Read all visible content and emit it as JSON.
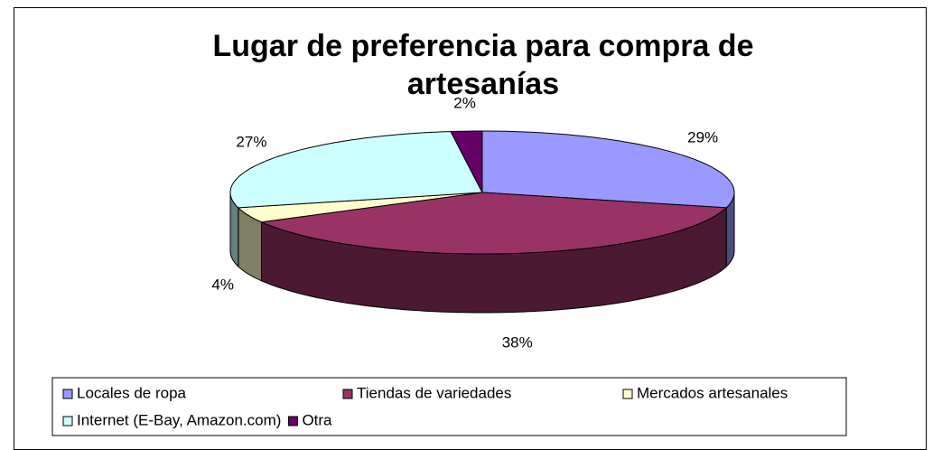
{
  "chart_data": {
    "type": "pie",
    "title": "Lugar de preferencia para compra de artesanías",
    "categories": [
      "Locales de ropa",
      "Tiendas de variedades",
      "Mercados artesanales",
      "Internet (E-Bay, Amazon.com)",
      "Otra"
    ],
    "values": [
      29,
      38,
      4,
      27,
      2
    ],
    "value_labels": [
      "29%",
      "38%",
      "4%",
      "27%",
      "2%"
    ],
    "colors": [
      "#9999ff",
      "#993366",
      "#ffffcc",
      "#ccffff",
      "#660066"
    ],
    "legend": "bottom"
  }
}
